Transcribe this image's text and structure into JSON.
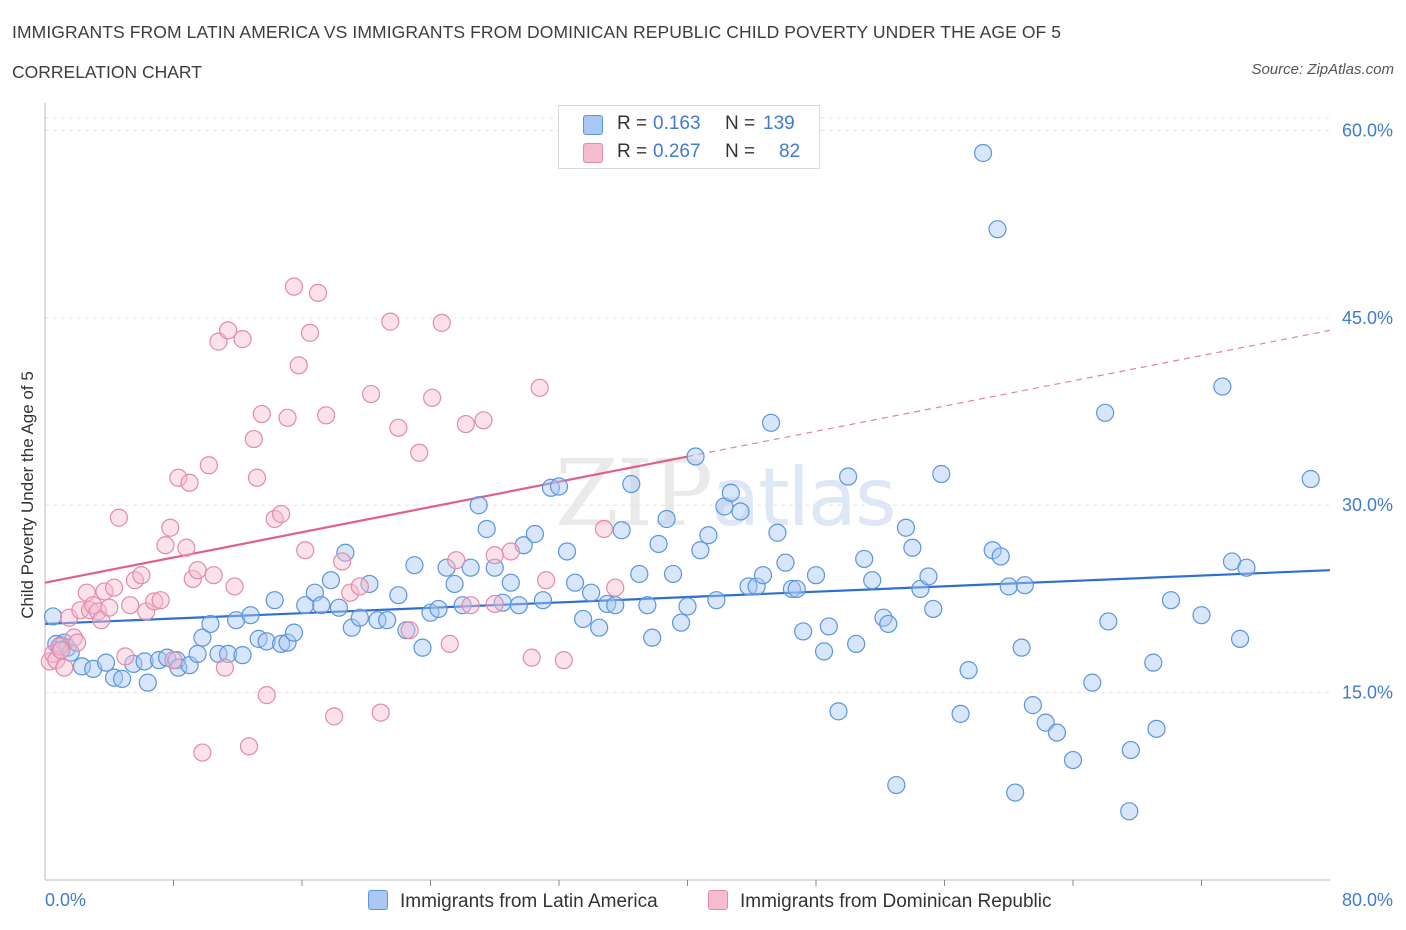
{
  "header": {
    "title": "IMMIGRANTS FROM LATIN AMERICA VS IMMIGRANTS FROM DOMINICAN REPUBLIC CHILD POVERTY UNDER THE AGE OF 5",
    "subtitle": "CORRELATION CHART",
    "source": "Source: ZipAtlas.com"
  },
  "watermark": {
    "zip": "ZIP",
    "atlas": "atlas"
  },
  "legend_top": {
    "rows": [
      {
        "r_label": "R =",
        "r_value": "0.163",
        "n_label": "N =",
        "n_value": "139"
      },
      {
        "r_label": "R =",
        "r_value": "0.267",
        "n_label": "N =",
        "n_value": "82"
      }
    ]
  },
  "legend_bottom": {
    "series1": "Immigrants from Latin America",
    "series2": "Immigrants from Dominican Republic"
  },
  "x_ticks": {
    "min_label": "0.0%",
    "max_label": "80.0%"
  },
  "colors": {
    "blue_fill": "#a9c8f2",
    "blue_stroke": "#5b95dc",
    "blue_line": "#2f6fd1",
    "pink_fill": "#f5bcd0",
    "pink_stroke": "#e38aaa",
    "pink_line": "#e0608a",
    "tick_text": "#3f7bd1",
    "grid": "#e3e3e3"
  },
  "chart_data": {
    "type": "scatter",
    "title": "IMMIGRANTS FROM LATIN AMERICA VS IMMIGRANTS FROM DOMINICAN REPUBLIC CHILD POVERTY UNDER THE AGE OF 5",
    "xlabel": "",
    "ylabel": "Child Poverty Under the Age of 5",
    "xlim": [
      0,
      80
    ],
    "ylim": [
      0,
      61
    ],
    "y_ticks": [
      15,
      30,
      45,
      60
    ],
    "y_tick_labels": [
      "15.0%",
      "30.0%",
      "45.0%",
      "60.0%"
    ],
    "x_tick_labels": [
      "0.0%",
      "80.0%"
    ],
    "grid": "horizontal dashed",
    "legend": "top-center and bottom",
    "series": [
      {
        "name": "Immigrants from Latin America",
        "R": 0.163,
        "N": 139,
        "trend": {
          "x0": 0,
          "y0": 20.5,
          "x1": 80,
          "y1": 24.8,
          "solid_until": 80
        },
        "points": [
          [
            0.5,
            21.1
          ],
          [
            0.7,
            18.9
          ],
          [
            1.0,
            18.8
          ],
          [
            1.2,
            19.0
          ],
          [
            1.4,
            18.6
          ],
          [
            1.6,
            18.2
          ],
          [
            2.3,
            17.1
          ],
          [
            3.0,
            16.9
          ],
          [
            3.8,
            17.4
          ],
          [
            4.3,
            16.2
          ],
          [
            4.8,
            16.1
          ],
          [
            5.5,
            17.3
          ],
          [
            6.2,
            17.5
          ],
          [
            6.4,
            15.8
          ],
          [
            7.1,
            17.6
          ],
          [
            7.6,
            17.8
          ],
          [
            8.2,
            17.6
          ],
          [
            8.3,
            17.0
          ],
          [
            9.0,
            17.2
          ],
          [
            9.5,
            18.1
          ],
          [
            9.8,
            19.4
          ],
          [
            10.3,
            20.5
          ],
          [
            10.8,
            18.1
          ],
          [
            11.4,
            18.1
          ],
          [
            11.9,
            20.8
          ],
          [
            12.3,
            18.0
          ],
          [
            12.8,
            21.2
          ],
          [
            13.3,
            19.3
          ],
          [
            13.8,
            19.1
          ],
          [
            14.3,
            22.4
          ],
          [
            14.7,
            18.9
          ],
          [
            15.1,
            19.0
          ],
          [
            15.5,
            19.8
          ],
          [
            16.2,
            22.0
          ],
          [
            16.8,
            23.0
          ],
          [
            17.2,
            22.0
          ],
          [
            17.8,
            24.0
          ],
          [
            18.3,
            21.8
          ],
          [
            18.7,
            26.2
          ],
          [
            19.1,
            20.2
          ],
          [
            19.6,
            21.0
          ],
          [
            20.2,
            23.7
          ],
          [
            20.7,
            20.8
          ],
          [
            21.3,
            20.8
          ],
          [
            22.0,
            22.8
          ],
          [
            22.5,
            20.0
          ],
          [
            23.0,
            25.2
          ],
          [
            23.5,
            18.6
          ],
          [
            24.0,
            21.4
          ],
          [
            24.5,
            21.7
          ],
          [
            25.0,
            25.0
          ],
          [
            25.5,
            23.7
          ],
          [
            26.0,
            22.0
          ],
          [
            26.5,
            25.0
          ],
          [
            27.0,
            30.0
          ],
          [
            27.5,
            28.1
          ],
          [
            28.0,
            25.0
          ],
          [
            28.5,
            22.2
          ],
          [
            29.0,
            23.8
          ],
          [
            29.5,
            22.0
          ],
          [
            29.8,
            26.8
          ],
          [
            30.5,
            27.7
          ],
          [
            31.0,
            22.4
          ],
          [
            31.5,
            31.4
          ],
          [
            32.0,
            31.5
          ],
          [
            32.5,
            26.3
          ],
          [
            33.0,
            23.8
          ],
          [
            33.5,
            20.9
          ],
          [
            34.0,
            23.0
          ],
          [
            34.5,
            20.2
          ],
          [
            35.0,
            22.1
          ],
          [
            35.5,
            22.0
          ],
          [
            35.9,
            28.0
          ],
          [
            36.5,
            31.7
          ],
          [
            37.0,
            24.5
          ],
          [
            37.5,
            22.0
          ],
          [
            37.8,
            19.4
          ],
          [
            38.2,
            26.9
          ],
          [
            38.7,
            28.9
          ],
          [
            39.1,
            24.5
          ],
          [
            39.6,
            20.6
          ],
          [
            40.0,
            21.9
          ],
          [
            40.5,
            33.9
          ],
          [
            40.8,
            26.4
          ],
          [
            41.3,
            27.6
          ],
          [
            41.8,
            22.4
          ],
          [
            42.3,
            29.9
          ],
          [
            42.7,
            31.0
          ],
          [
            43.3,
            29.5
          ],
          [
            43.8,
            23.5
          ],
          [
            44.3,
            23.5
          ],
          [
            44.7,
            24.4
          ],
          [
            45.2,
            36.6
          ],
          [
            45.6,
            27.8
          ],
          [
            46.1,
            25.4
          ],
          [
            46.5,
            23.3
          ],
          [
            46.8,
            23.3
          ],
          [
            47.2,
            19.9
          ],
          [
            48.0,
            24.4
          ],
          [
            48.5,
            18.3
          ],
          [
            48.8,
            20.3
          ],
          [
            49.4,
            13.5
          ],
          [
            50.0,
            32.3
          ],
          [
            50.5,
            18.9
          ],
          [
            51.0,
            25.7
          ],
          [
            51.5,
            24.0
          ],
          [
            52.2,
            21.0
          ],
          [
            52.5,
            20.5
          ],
          [
            53.0,
            7.6
          ],
          [
            53.6,
            28.2
          ],
          [
            54.0,
            26.6
          ],
          [
            54.5,
            23.3
          ],
          [
            55.0,
            24.3
          ],
          [
            55.3,
            21.7
          ],
          [
            55.8,
            32.5
          ],
          [
            57.0,
            13.3
          ],
          [
            57.5,
            16.8
          ],
          [
            58.4,
            58.2
          ],
          [
            59.0,
            26.4
          ],
          [
            59.3,
            52.1
          ],
          [
            59.5,
            25.9
          ],
          [
            60.0,
            23.5
          ],
          [
            60.4,
            7.0
          ],
          [
            60.8,
            18.6
          ],
          [
            61.0,
            23.6
          ],
          [
            61.5,
            14.0
          ],
          [
            62.3,
            12.6
          ],
          [
            63.0,
            11.8
          ],
          [
            64.0,
            9.6
          ],
          [
            65.2,
            15.8
          ],
          [
            66.0,
            37.4
          ],
          [
            66.2,
            20.7
          ],
          [
            67.6,
            10.4
          ],
          [
            67.5,
            5.5
          ],
          [
            69.0,
            17.4
          ],
          [
            69.2,
            12.1
          ],
          [
            70.1,
            22.4
          ],
          [
            72.0,
            21.2
          ],
          [
            73.3,
            39.5
          ],
          [
            73.9,
            25.5
          ],
          [
            74.4,
            19.3
          ],
          [
            74.8,
            25.0
          ],
          [
            78.8,
            32.1
          ]
        ]
      },
      {
        "name": "Immigrants from Dominican Republic",
        "R": 0.267,
        "N": 82,
        "trend": {
          "x0": 0,
          "y0": 23.8,
          "x1": 80,
          "y1": 44.0,
          "solid_until": 40
        },
        "points": [
          [
            0.3,
            17.5
          ],
          [
            0.5,
            18.1
          ],
          [
            0.7,
            17.6
          ],
          [
            0.9,
            18.7
          ],
          [
            1.0,
            18.4
          ],
          [
            1.2,
            17.0
          ],
          [
            1.5,
            21.0
          ],
          [
            1.8,
            19.4
          ],
          [
            2.2,
            21.6
          ],
          [
            2.6,
            23.0
          ],
          [
            2.8,
            21.6
          ],
          [
            3.0,
            22.0
          ],
          [
            3.3,
            21.5
          ],
          [
            3.5,
            20.8
          ],
          [
            3.7,
            23.1
          ],
          [
            4.0,
            21.8
          ],
          [
            4.3,
            23.4
          ],
          [
            4.6,
            29.0
          ],
          [
            5.0,
            17.9
          ],
          [
            5.3,
            22.0
          ],
          [
            5.6,
            24.0
          ],
          [
            6.0,
            24.4
          ],
          [
            6.3,
            21.5
          ],
          [
            6.8,
            22.3
          ],
          [
            7.2,
            22.4
          ],
          [
            7.5,
            26.8
          ],
          [
            7.8,
            28.2
          ],
          [
            8.0,
            17.6
          ],
          [
            8.3,
            32.2
          ],
          [
            8.8,
            26.6
          ],
          [
            9.0,
            31.8
          ],
          [
            9.2,
            24.1
          ],
          [
            9.5,
            24.8
          ],
          [
            9.8,
            10.2
          ],
          [
            10.2,
            33.2
          ],
          [
            10.5,
            24.4
          ],
          [
            10.8,
            43.1
          ],
          [
            11.2,
            17.0
          ],
          [
            11.4,
            44.0
          ],
          [
            11.8,
            23.5
          ],
          [
            12.3,
            43.3
          ],
          [
            12.7,
            10.7
          ],
          [
            13.0,
            35.3
          ],
          [
            13.2,
            32.2
          ],
          [
            13.5,
            37.3
          ],
          [
            13.8,
            14.8
          ],
          [
            14.3,
            28.9
          ],
          [
            14.7,
            29.3
          ],
          [
            15.1,
            37.0
          ],
          [
            15.5,
            47.5
          ],
          [
            15.8,
            41.2
          ],
          [
            16.2,
            26.4
          ],
          [
            16.5,
            43.8
          ],
          [
            17.0,
            47.0
          ],
          [
            17.5,
            37.2
          ],
          [
            18.0,
            13.1
          ],
          [
            18.5,
            25.5
          ],
          [
            19.0,
            23.0
          ],
          [
            19.6,
            23.5
          ],
          [
            20.3,
            38.9
          ],
          [
            20.9,
            13.4
          ],
          [
            21.5,
            44.7
          ],
          [
            22.0,
            36.2
          ],
          [
            22.7,
            20.0
          ],
          [
            23.3,
            34.2
          ],
          [
            24.1,
            38.6
          ],
          [
            24.7,
            44.6
          ],
          [
            25.2,
            18.9
          ],
          [
            25.6,
            25.6
          ],
          [
            26.2,
            36.5
          ],
          [
            26.5,
            22.0
          ],
          [
            27.3,
            36.8
          ],
          [
            28.0,
            26.0
          ],
          [
            29.0,
            26.3
          ],
          [
            30.3,
            17.8
          ],
          [
            30.8,
            39.4
          ],
          [
            31.2,
            24.0
          ],
          [
            32.3,
            17.6
          ],
          [
            34.8,
            28.1
          ],
          [
            35.5,
            23.4
          ],
          [
            28.0,
            22.1
          ],
          [
            2.0,
            19.0
          ]
        ]
      }
    ]
  }
}
